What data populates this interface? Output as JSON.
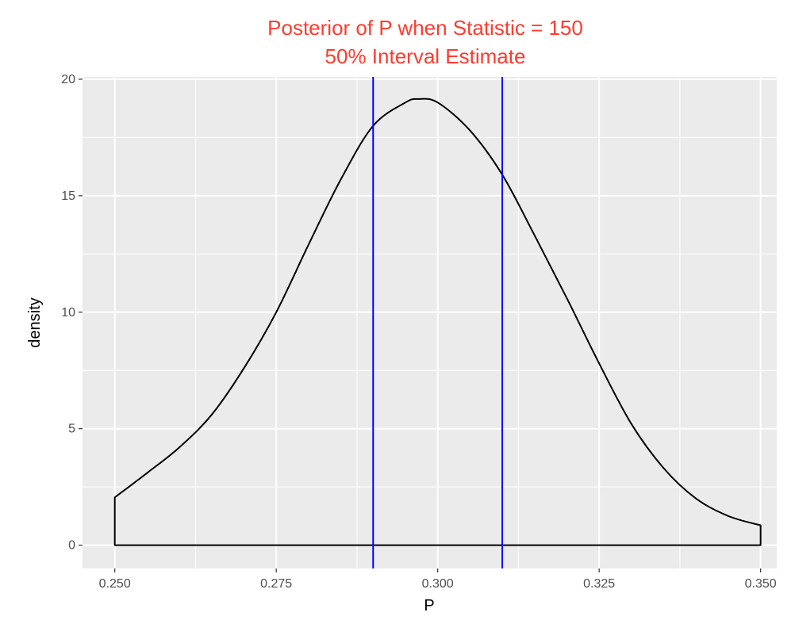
{
  "chart_data": {
    "type": "area",
    "title": "Posterior of P when Statistic = 150",
    "subtitle": "50% Interval Estimate",
    "xlabel": "P",
    "ylabel": "density",
    "xlim": [
      0.245,
      0.3525
    ],
    "ylim": [
      -1,
      20.1
    ],
    "x_ticks": [
      "0.250",
      "0.275",
      "0.300",
      "0.325",
      "0.350"
    ],
    "y_ticks": [
      "0",
      "5",
      "10",
      "15",
      "20"
    ],
    "grid": true,
    "legend": "none",
    "series": [
      {
        "x": [
          0.25,
          0.255,
          0.26,
          0.265,
          0.27,
          0.275,
          0.28,
          0.285,
          0.29,
          0.295,
          0.297,
          0.3,
          0.305,
          0.31,
          0.315,
          0.32,
          0.325,
          0.33,
          0.335,
          0.34,
          0.345,
          0.35
        ],
        "values": [
          2.05,
          3.1,
          4.2,
          5.6,
          7.6,
          10.0,
          12.9,
          15.7,
          18.0,
          19.0,
          19.15,
          19.0,
          17.8,
          15.9,
          13.3,
          10.6,
          7.8,
          5.2,
          3.3,
          2.0,
          1.25,
          0.85
        ]
      }
    ],
    "vlines": [
      0.29,
      0.31
    ],
    "colors": {
      "title": "#ff3b2f",
      "curve": "#000000",
      "vline": "#0000ff",
      "panel": "#ebebeb",
      "grid": "#ffffff"
    }
  }
}
